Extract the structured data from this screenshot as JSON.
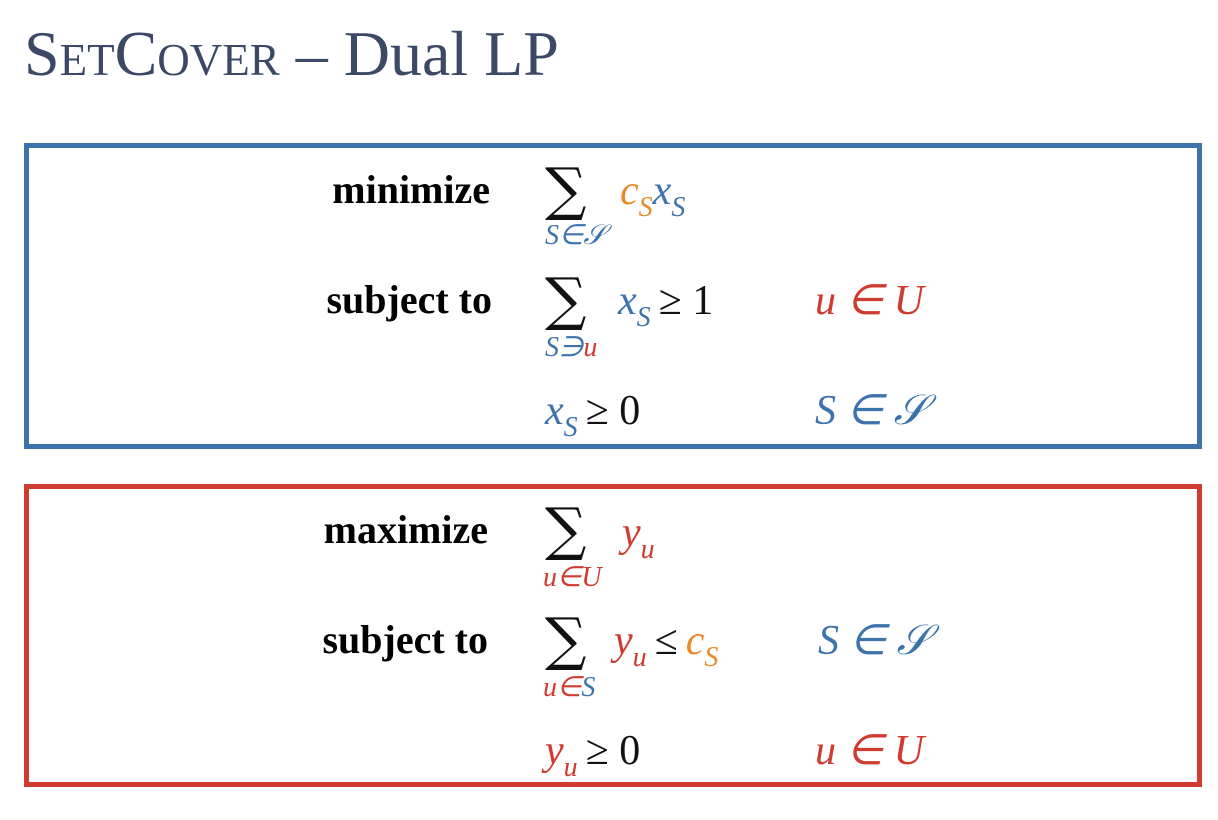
{
  "title": {
    "small_caps": "SetCover",
    "rest": " – Dual LP"
  },
  "primal": {
    "objective_keyword": "minimize",
    "objective_sum_index": "S∈𝒮",
    "objective_coef": "c",
    "objective_coef_sub": "S",
    "objective_var": "x",
    "objective_var_sub": "S",
    "constraint_keyword": "subject to",
    "constraint_sum_index_var": "S∋",
    "constraint_sum_index_u": "u",
    "constraint_var": "x",
    "constraint_var_sub": "S",
    "constraint_op": "≥ 1",
    "constraint_domain": "u ∈ U",
    "nonneg_var": "x",
    "nonneg_var_sub": "S",
    "nonneg_op": "≥ 0",
    "nonneg_domain": "S ∈ 𝒮"
  },
  "dual": {
    "objective_keyword": "maximize",
    "objective_sum_index": "u∈U",
    "objective_var": "y",
    "objective_var_sub": "u",
    "constraint_keyword": "subject to",
    "constraint_sum_index_u": "u∈",
    "constraint_sum_index_S": "S",
    "constraint_var": "y",
    "constraint_var_sub": "u",
    "constraint_op": "≤",
    "constraint_coef": "c",
    "constraint_coef_sub": "S",
    "constraint_domain": "S ∈ 𝒮",
    "nonneg_var": "y",
    "nonneg_var_sub": "u",
    "nonneg_op": "≥ 0",
    "nonneg_domain": "u ∈ U"
  },
  "colors": {
    "title": "#3b4866",
    "blue": "#3d73ad",
    "red": "#cf3b2f",
    "orange": "#e88a2c"
  }
}
